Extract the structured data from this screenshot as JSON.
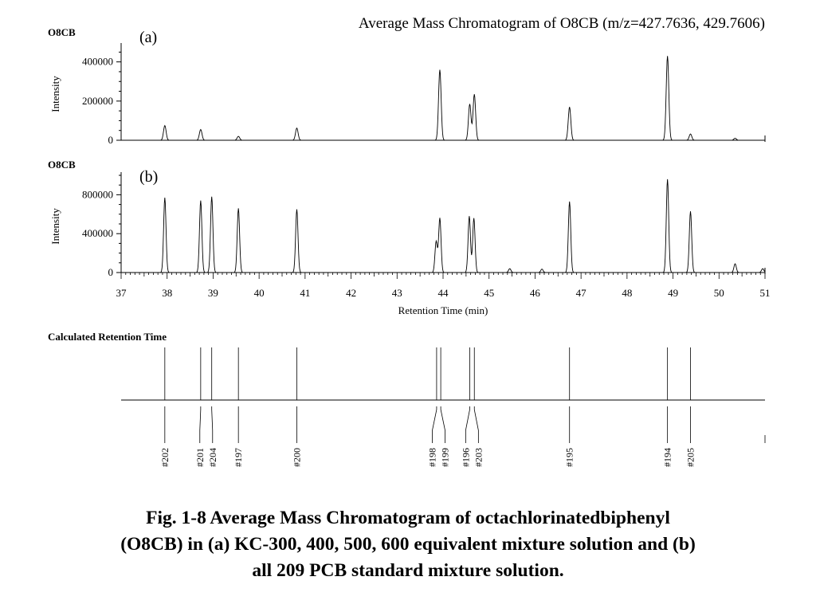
{
  "title": "Average Mass Chromatogram of O8CB (m/z=427.7636, 429.7606)",
  "caption": {
    "lines": [
      "Fig. 1-8  Average Mass Chromatogram of octachlorinatedbiphenyl",
      "(O8CB) in (a) KC-300, 400, 500, 600 equivalent mixture solution and (b)",
      "all 209 PCB standard mixture solution."
    ]
  },
  "chart_data": [
    {
      "type": "line",
      "panel": "(a)",
      "compound": "O8CB",
      "ylabel": "Intensity",
      "xlabel": "",
      "xlim": [
        37,
        51
      ],
      "ylim": [
        0,
        480000
      ],
      "yticks": [
        0,
        200000,
        400000
      ],
      "ytick_labels": [
        "0",
        "200000",
        "400000"
      ],
      "peaks": [
        {
          "x": 37.95,
          "y": 75000
        },
        {
          "x": 38.73,
          "y": 55000
        },
        {
          "x": 39.55,
          "y": 20000
        },
        {
          "x": 40.82,
          "y": 62000
        },
        {
          "x": 43.93,
          "y": 360000
        },
        {
          "x": 44.58,
          "y": 185000
        },
        {
          "x": 44.68,
          "y": 235000
        },
        {
          "x": 46.75,
          "y": 170000
        },
        {
          "x": 48.88,
          "y": 430000
        },
        {
          "x": 49.38,
          "y": 32000
        },
        {
          "x": 50.35,
          "y": 10000
        }
      ]
    },
    {
      "type": "line",
      "panel": "(b)",
      "compound": "O8CB",
      "ylabel": "Intensity",
      "xlabel": "Retention Time (min)",
      "xlim": [
        37,
        51
      ],
      "ylim": [
        0,
        1000000
      ],
      "xticks": [
        37,
        38,
        39,
        40,
        41,
        42,
        43,
        44,
        45,
        46,
        47,
        48,
        49,
        50,
        51
      ],
      "xtick_labels": [
        "37",
        "38",
        "39",
        "40",
        "41",
        "42",
        "43",
        "44",
        "45",
        "46",
        "47",
        "48",
        "49",
        "50",
        "51"
      ],
      "yticks": [
        0,
        400000,
        800000
      ],
      "ytick_labels": [
        "0",
        "400000",
        "800000"
      ],
      "peaks": [
        {
          "x": 37.95,
          "y": 770000
        },
        {
          "x": 38.73,
          "y": 740000
        },
        {
          "x": 38.97,
          "y": 780000
        },
        {
          "x": 39.55,
          "y": 660000
        },
        {
          "x": 40.82,
          "y": 650000
        },
        {
          "x": 43.85,
          "y": 320000
        },
        {
          "x": 43.93,
          "y": 560000
        },
        {
          "x": 44.57,
          "y": 580000
        },
        {
          "x": 44.67,
          "y": 560000
        },
        {
          "x": 45.45,
          "y": 40000
        },
        {
          "x": 46.15,
          "y": 35000
        },
        {
          "x": 46.75,
          "y": 730000
        },
        {
          "x": 48.88,
          "y": 960000
        },
        {
          "x": 49.38,
          "y": 630000
        },
        {
          "x": 50.35,
          "y": 90000
        },
        {
          "x": 50.95,
          "y": 40000
        }
      ]
    },
    {
      "type": "annotation",
      "title": "Calculated Retention Time",
      "xlim": [
        37,
        51
      ],
      "markers": [
        {
          "label": "#202",
          "x": 37.95
        },
        {
          "label": "#201",
          "x": 38.73
        },
        {
          "label": "#204",
          "x": 38.97
        },
        {
          "label": "#197",
          "x": 39.55
        },
        {
          "label": "#200",
          "x": 40.82
        },
        {
          "label": "#198",
          "x": 43.86
        },
        {
          "label": "#199",
          "x": 43.95
        },
        {
          "label": "#196",
          "x": 44.58
        },
        {
          "label": "#203",
          "x": 44.68
        },
        {
          "label": "#195",
          "x": 46.75
        },
        {
          "label": "#194",
          "x": 48.88
        },
        {
          "label": "#205",
          "x": 49.38
        }
      ]
    }
  ]
}
